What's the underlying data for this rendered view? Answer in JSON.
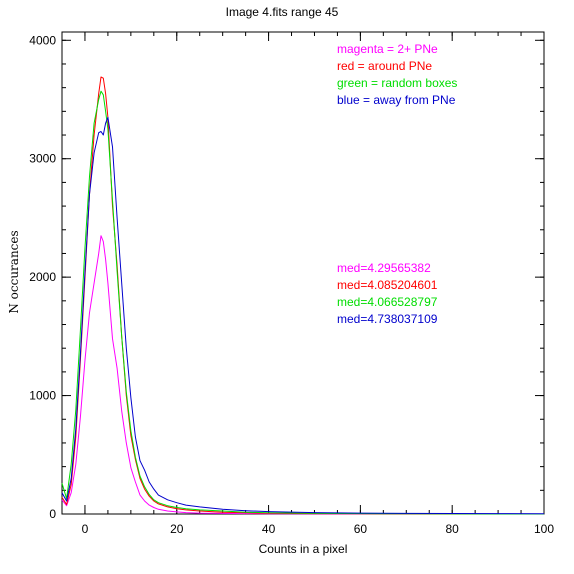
{
  "chart_data": {
    "type": "line",
    "title": "Image 4.fits    range 45",
    "xlabel": "Counts in a pixel",
    "ylabel": "N occurances",
    "xlim": [
      -5,
      100
    ],
    "ylim": [
      0,
      4070
    ],
    "xticks": [
      0,
      20,
      40,
      60,
      80,
      100
    ],
    "yticks": [
      0,
      1000,
      2000,
      3000,
      4000
    ],
    "x_minor_step": 5,
    "y_minor_step": 200,
    "legend": [
      {
        "text": "magenta = 2+ PNe",
        "color": "#ff00ff"
      },
      {
        "text": "red = around PNe",
        "color": "#ff0000"
      },
      {
        "text": "green = random boxes",
        "color": "#00dd00"
      },
      {
        "text": "blue = away from PNe",
        "color": "#0000cc"
      }
    ],
    "annotations": [
      {
        "text": "med=4.29565382",
        "color": "#ff00ff"
      },
      {
        "text": "med=4.085204601",
        "color": "#ff0000"
      },
      {
        "text": "med=4.066528797",
        "color": "#00dd00"
      },
      {
        "text": "med=4.738037109",
        "color": "#0000cc"
      }
    ],
    "series": [
      {
        "color": "#ff00ff",
        "x": [
          -5,
          -4,
          -3,
          -2,
          -1,
          0,
          1,
          2,
          3,
          3.5,
          4,
          4.5,
          5,
          6,
          7,
          8,
          9,
          10,
          11,
          12,
          13,
          14,
          15,
          16,
          18,
          20,
          22,
          25,
          30,
          35,
          40,
          50,
          60,
          70,
          80,
          90,
          100
        ],
        "y": [
          120,
          70,
          180,
          420,
          820,
          1300,
          1700,
          1950,
          2200,
          2350,
          2300,
          2150,
          1950,
          1480,
          1230,
          870,
          600,
          390,
          270,
          160,
          110,
          75,
          55,
          40,
          25,
          18,
          12,
          8,
          5,
          3,
          2,
          1,
          0,
          0,
          0,
          0,
          0
        ]
      },
      {
        "color": "#ff0000",
        "x": [
          -5,
          -4,
          -3,
          -2,
          -1,
          0,
          1,
          2,
          3,
          3.5,
          4,
          4.5,
          5,
          6,
          7,
          8,
          9,
          10,
          11,
          12,
          13,
          14,
          15,
          16,
          18,
          20,
          22,
          25,
          30,
          35,
          40,
          50,
          60,
          70,
          80,
          90,
          100
        ],
        "y": [
          140,
          80,
          250,
          650,
          1300,
          2000,
          2700,
          3200,
          3550,
          3690,
          3680,
          3550,
          3350,
          2600,
          2100,
          1500,
          1000,
          660,
          460,
          300,
          210,
          150,
          110,
          85,
          60,
          45,
          35,
          25,
          15,
          10,
          7,
          3,
          2,
          1,
          0,
          0,
          0
        ]
      },
      {
        "color": "#00dd00",
        "x": [
          -5,
          -4,
          -3,
          -2,
          -1,
          0,
          1,
          2,
          3,
          3.5,
          4,
          4.5,
          5,
          6,
          7,
          8,
          9,
          10,
          11,
          12,
          13,
          14,
          15,
          16,
          18,
          20,
          22,
          25,
          30,
          35,
          40,
          50,
          60,
          70,
          80,
          90,
          100
        ],
        "y": [
          260,
          130,
          420,
          880,
          1550,
          2250,
          2850,
          3300,
          3500,
          3570,
          3540,
          3400,
          3250,
          2650,
          2050,
          1500,
          1030,
          700,
          480,
          320,
          230,
          165,
          120,
          95,
          70,
          55,
          45,
          35,
          25,
          15,
          10,
          5,
          3,
          2,
          1,
          0,
          0
        ]
      },
      {
        "color": "#0000cc",
        "x": [
          -5,
          -4,
          -3,
          -2,
          -1,
          0,
          1,
          2,
          3,
          3.5,
          4,
          4.5,
          5,
          6,
          7,
          8,
          9,
          10,
          11,
          12,
          13,
          14,
          15,
          16,
          18,
          20,
          22,
          25,
          30,
          35,
          40,
          50,
          60,
          70,
          80,
          90,
          100
        ],
        "y": [
          180,
          110,
          300,
          720,
          1350,
          2050,
          2700,
          3050,
          3220,
          3230,
          3200,
          3300,
          3350,
          3100,
          2500,
          1950,
          1400,
          980,
          650,
          450,
          370,
          270,
          210,
          160,
          120,
          95,
          75,
          60,
          40,
          28,
          20,
          12,
          8,
          5,
          4,
          3,
          2
        ]
      }
    ]
  }
}
